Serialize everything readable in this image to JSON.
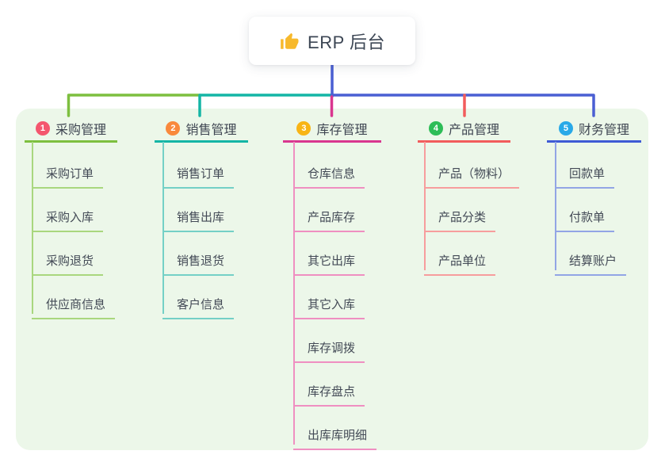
{
  "root": {
    "title": "ERP 后台",
    "icon": "thumbs-up-icon",
    "icon_color": "#f7b92c"
  },
  "connector_color": "#4a5fd3",
  "canvas": {
    "background": "#ffffff",
    "panel_color": "#ecf7e9"
  },
  "branches": [
    {
      "badge": "1",
      "label": "采购管理",
      "badge_color": "#f4566e",
      "line_color": "#7dbf3f",
      "child_line_color": "#a9d77e",
      "children": [
        "采购订单",
        "采购入库",
        "采购退货",
        "供应商信息"
      ]
    },
    {
      "badge": "2",
      "label": "销售管理",
      "badge_color": "#f9893c",
      "line_color": "#14b5a5",
      "child_line_color": "#74d0c6",
      "children": [
        "销售订单",
        "销售出库",
        "销售退货",
        "客户信息"
      ]
    },
    {
      "badge": "3",
      "label": "库存管理",
      "badge_color": "#f8b415",
      "line_color": "#d9368f",
      "child_line_color": "#ef8fc1",
      "children": [
        "仓库信息",
        "产品库存",
        "其它出库",
        "其它入库",
        "库存调拨",
        "库存盘点",
        "出库库明细"
      ]
    },
    {
      "badge": "4",
      "label": "产品管理",
      "badge_color": "#2dbd57",
      "line_color": "#f25c5c",
      "child_line_color": "#f79d9d",
      "children": [
        "产品（物料）",
        "产品分类",
        "产品单位"
      ]
    },
    {
      "badge": "5",
      "label": "财务管理",
      "badge_color": "#29a9e8",
      "line_color": "#3f5bd5",
      "child_line_color": "#92a5e5",
      "children": [
        "回款单",
        "付款单",
        "结算账户"
      ]
    }
  ]
}
